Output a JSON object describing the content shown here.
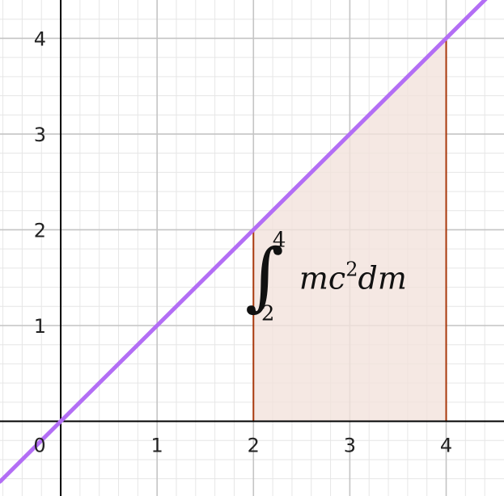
{
  "chart_data": {
    "type": "line",
    "xlim": [
      -0.63,
      4.6
    ],
    "ylim": [
      -0.78,
      4.4
    ],
    "grid": true,
    "minor_grid_step": 0.2,
    "x_ticks": [
      {
        "value": 0,
        "label": "0"
      },
      {
        "value": 1,
        "label": "1"
      },
      {
        "value": 2,
        "label": "2"
      },
      {
        "value": 3,
        "label": "3"
      },
      {
        "value": 4,
        "label": "4"
      }
    ],
    "y_ticks": [
      {
        "value": 1,
        "label": "1"
      },
      {
        "value": 2,
        "label": "2"
      },
      {
        "value": 3,
        "label": "3"
      },
      {
        "value": 4,
        "label": "4"
      }
    ],
    "series": [
      {
        "x": [
          -0.63,
          4.6
        ],
        "y": [
          -0.63,
          4.6
        ],
        "color": "#b36ef5"
      }
    ],
    "shaded_region": {
      "x_from": 2,
      "x_to": 4,
      "fill_color": "#f3e2dc",
      "edge_color": "#a8380c"
    },
    "annotation": {
      "anchor": [
        2.45,
        1.5
      ],
      "integral_sign": "∫",
      "lower_limit": "2",
      "upper_limit": "4",
      "integrand": "mc",
      "exponent": "2",
      "differential": "dm"
    }
  }
}
